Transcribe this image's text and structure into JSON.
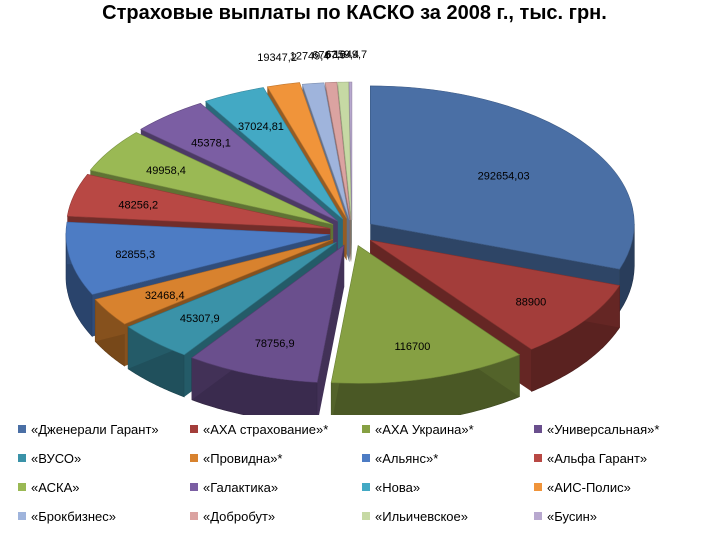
{
  "chart_data": {
    "type": "pie",
    "title": "Страховые выплаты по КАСКО за 2008 г., тыс. грн.",
    "legend_position": "bottom",
    "slices": [
      {
        "name": "«Дженерали Гарант»",
        "value": 292654.03,
        "label": "292654,03",
        "color": "#4a6fa5"
      },
      {
        "name": "«АХА страхование»*",
        "value": 88900,
        "label": "88900",
        "color": "#a33d3a"
      },
      {
        "name": "«АХА Украина»*",
        "value": 116700,
        "label": "116700",
        "color": "#86a043"
      },
      {
        "name": "«Универсальная»*",
        "value": 78756.9,
        "label": "78756,9",
        "color": "#6a4f8d"
      },
      {
        "name": "«ВУСО»",
        "value": 45307.9,
        "label": "45307,9",
        "color": "#3a92a8"
      },
      {
        "name": "«Провидна»*",
        "value": 32468.4,
        "label": "32468,4",
        "color": "#d8822e"
      },
      {
        "name": "«Альянс»*",
        "value": 82855.3,
        "label": "82855,3",
        "color": "#4d7cc4"
      },
      {
        "name": "«Альфа Гарант»",
        "value": 48256.2,
        "label": "48256,2",
        "color": "#b84844"
      },
      {
        "name": "«АСКА»",
        "value": 49958.4,
        "label": "49958,4",
        "color": "#9ab954"
      },
      {
        "name": "«Галактика»",
        "value": 45378.1,
        "label": "45378,1",
        "color": "#7b5ea3"
      },
      {
        "name": "«Нова»",
        "value": 37024.81,
        "label": "37024,81",
        "color": "#43a9c4"
      },
      {
        "name": "«АИС-Полис»",
        "value": 19347.2,
        "label": "19347,2",
        "color": "#f0943a"
      },
      {
        "name": "«Брокбизнес»",
        "value": 12749.4,
        "label": "12749,4",
        "color": "#9fb4dc"
      },
      {
        "name": "«Добробут»",
        "value": 6767.9,
        "label": "6767,9",
        "color": "#dba3a1"
      },
      {
        "name": "«Ильичевское»",
        "value": 6359.4,
        "label": "6359,4",
        "color": "#c6d9a4"
      },
      {
        "name": "«Бусин»",
        "value": 1649.7,
        "label": "1649,7",
        "color": "#b8a8cf"
      }
    ]
  }
}
